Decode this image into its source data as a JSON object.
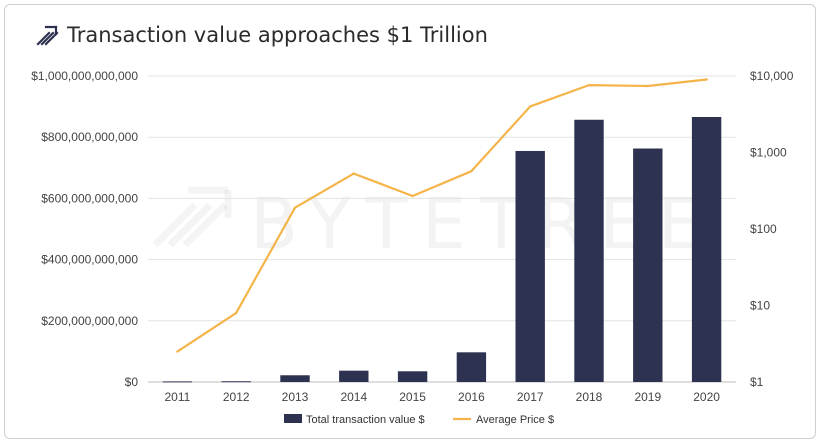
{
  "header": {
    "title": "Transaction value approaches $1 Trillion",
    "logo_icon": "bytetree-arrows-icon"
  },
  "watermark": "BYTETREE",
  "chart_data": {
    "type": "bar+line",
    "title": "Transaction value approaches $1 Trillion",
    "categories": [
      "2011",
      "2012",
      "2013",
      "2014",
      "2015",
      "2016",
      "2017",
      "2018",
      "2019",
      "2020"
    ],
    "series": [
      {
        "name": "Total transaction value $",
        "type": "bar",
        "axis": "left",
        "color": "#2d3251",
        "values": [
          2000000000,
          2500000000,
          22000000000,
          37000000000,
          35000000000,
          97000000000,
          755000000000,
          857000000000,
          763000000000,
          866000000000
        ]
      },
      {
        "name": "Average Price $",
        "type": "line",
        "axis": "right",
        "scale": "log",
        "color": "#f5b44a",
        "values": [
          2.5,
          8,
          190,
          530,
          270,
          570,
          4000,
          7600,
          7400,
          9000
        ]
      }
    ],
    "y_left": {
      "ylim": [
        0,
        1000000000000
      ],
      "ticks": [
        0,
        200000000000,
        400000000000,
        600000000000,
        800000000000,
        1000000000000
      ],
      "tick_labels": [
        "$0",
        "$200,000,000,000",
        "$400,000,000,000",
        "$600,000,000,000",
        "$800,000,000,000",
        "$1,000,000,000,000"
      ]
    },
    "y_right": {
      "scale": "log",
      "ylim": [
        1,
        10000
      ],
      "ticks": [
        1,
        10,
        100,
        1000,
        10000
      ],
      "tick_labels": [
        "$1",
        "$10",
        "$100",
        "$1,000",
        "$10,000"
      ]
    },
    "grid": "horizontal",
    "legend_position": "bottom"
  }
}
